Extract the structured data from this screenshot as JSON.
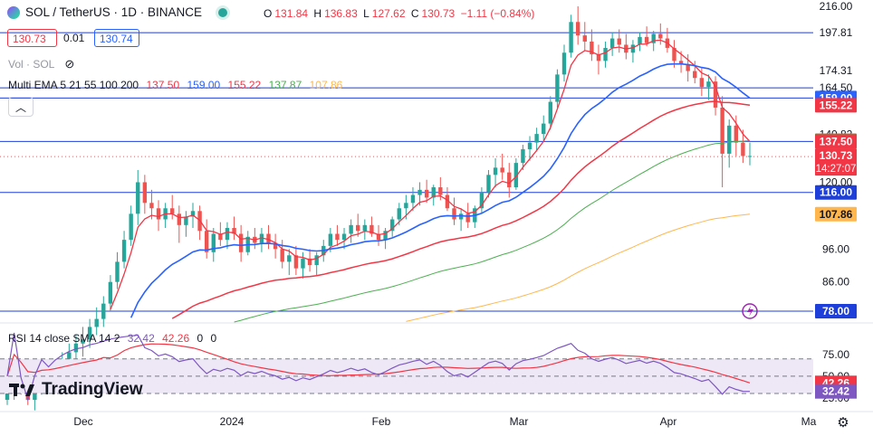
{
  "header": {
    "symbol": "SOL / TetherUS · 1D · BINANCE",
    "open_label": "O",
    "open": "131.84",
    "high_label": "H",
    "high": "136.83",
    "low_label": "L",
    "low": "127.62",
    "close_label": "C",
    "close": "130.73",
    "change": "−1.11 (−0.84%)",
    "bid": "130.73",
    "spread": "0.01",
    "ask": "130.74"
  },
  "indicators": {
    "volume_label": "Vol · SOL",
    "ema_label": "Multi EMA 5 21 55 100 200",
    "ema_values": [
      "137.50",
      "159.00",
      "155.22",
      "137.87",
      "107.86"
    ],
    "rsi_label": "RSI 14 close SMA 14 2",
    "rsi_values": [
      "32.42",
      "42.26",
      "0",
      "0"
    ]
  },
  "brand": "TradingView",
  "colors": {
    "up": "#26a69a",
    "down": "#ef5350",
    "ema5": "#f23645",
    "ema21": "#2962ff",
    "ema55": "#f23645",
    "ema100": "#4caf50",
    "ema200": "#ffb74d",
    "hline": "#1e3fd9",
    "rsi": "#7e57c2",
    "rsi_sma": "#f23645",
    "rsi_band": "#ede7f6"
  },
  "chart_data": {
    "type": "candlestick",
    "title": "SOL / TetherUS · 1D · BINANCE",
    "x_ticks": [
      "Dec",
      "2024",
      "Feb",
      "Mar",
      "Apr",
      "Ma"
    ],
    "y_ticks": [
      "216.00",
      "197.81",
      "174.31",
      "164.50",
      "140.82",
      "120.00",
      "96.00",
      "86.00"
    ],
    "price_scale": "log",
    "horizontal_levels": [
      {
        "value": 197.81,
        "label": "197.81",
        "style": "line"
      },
      {
        "value": 164.5,
        "label": "164.50",
        "style": "line"
      },
      {
        "value": 159.0,
        "label": "159.00",
        "style": "line"
      },
      {
        "value": 137.5,
        "label": "137.50",
        "style": "line"
      },
      {
        "value": 116.0,
        "label": "116.00",
        "style": "line"
      },
      {
        "value": 78.0,
        "label": "78.00",
        "style": "line"
      }
    ],
    "axis_badges": [
      {
        "value": 216.0,
        "label": "216.00",
        "kind": "plain"
      },
      {
        "value": 197.81,
        "label": "197.81",
        "kind": "plain"
      },
      {
        "value": 174.31,
        "label": "174.31",
        "kind": "plain"
      },
      {
        "value": 164.5,
        "label": "164.50",
        "kind": "plain"
      },
      {
        "value": 159.0,
        "label": "159.00",
        "kind": "ema21"
      },
      {
        "value": 155.22,
        "label": "155.22",
        "kind": "ema55"
      },
      {
        "value": 140.82,
        "label": "140.82",
        "kind": "plain"
      },
      {
        "value": 137.87,
        "label": "137.87",
        "kind": "ema100"
      },
      {
        "value": 137.5,
        "label": "137.50",
        "kind": "ema5"
      },
      {
        "value": 130.73,
        "label": "130.73",
        "kind": "last"
      },
      {
        "value": 116.0,
        "label": "116.00",
        "kind": "dark"
      },
      {
        "value": 107.86,
        "label": "107.86",
        "kind": "ema200"
      },
      {
        "value": 78.0,
        "label": "78.00",
        "kind": "dark"
      }
    ],
    "countdown": "14:27:07",
    "last_price": 130.73,
    "ohlc": [
      [
        58,
        62,
        57,
        60
      ],
      [
        60,
        63,
        58,
        61
      ],
      [
        61,
        64,
        59,
        60
      ],
      [
        60,
        62,
        57,
        58
      ],
      [
        58,
        61,
        56,
        60
      ],
      [
        60,
        64,
        59,
        63
      ],
      [
        63,
        66,
        61,
        62
      ],
      [
        62,
        65,
        60,
        64
      ],
      [
        64,
        68,
        62,
        66
      ],
      [
        66,
        70,
        64,
        68
      ],
      [
        68,
        72,
        66,
        70
      ],
      [
        70,
        74,
        67,
        71
      ],
      [
        71,
        76,
        69,
        74
      ],
      [
        74,
        79,
        72,
        76
      ],
      [
        76,
        82,
        74,
        80
      ],
      [
        80,
        88,
        78,
        86
      ],
      [
        86,
        95,
        84,
        92
      ],
      [
        92,
        102,
        90,
        99
      ],
      [
        99,
        111,
        97,
        108
      ],
      [
        108,
        125,
        104,
        120
      ],
      [
        120,
        123,
        108,
        112
      ],
      [
        112,
        117,
        106,
        110
      ],
      [
        110,
        113,
        102,
        106
      ],
      [
        106,
        112,
        103,
        110
      ],
      [
        110,
        115,
        106,
        108
      ],
      [
        108,
        111,
        98,
        104
      ],
      [
        104,
        109,
        100,
        107
      ],
      [
        107,
        112,
        103,
        109
      ],
      [
        109,
        111,
        99,
        102
      ],
      [
        102,
        106,
        93,
        95
      ],
      [
        95,
        103,
        92,
        101
      ],
      [
        101,
        105,
        97,
        99
      ],
      [
        99,
        105,
        96,
        103
      ],
      [
        103,
        107,
        99,
        101
      ],
      [
        101,
        104,
        92,
        95
      ],
      [
        95,
        102,
        94,
        100
      ],
      [
        100,
        103,
        96,
        98
      ],
      [
        98,
        103,
        95,
        101
      ],
      [
        101,
        104,
        96,
        98
      ],
      [
        98,
        101,
        93,
        96
      ],
      [
        96,
        99,
        90,
        92
      ],
      [
        92,
        96,
        88,
        94
      ],
      [
        94,
        97,
        88,
        90
      ],
      [
        90,
        95,
        87,
        93
      ],
      [
        93,
        96,
        89,
        91
      ],
      [
        91,
        95,
        88,
        94
      ],
      [
        94,
        99,
        92,
        97
      ],
      [
        97,
        103,
        95,
        101
      ],
      [
        101,
        104,
        97,
        99
      ],
      [
        99,
        103,
        96,
        101
      ],
      [
        101,
        106,
        98,
        104
      ],
      [
        104,
        108,
        100,
        102
      ],
      [
        102,
        106,
        99,
        104
      ],
      [
        104,
        107,
        100,
        101
      ],
      [
        101,
        104,
        97,
        99
      ],
      [
        99,
        103,
        96,
        102
      ],
      [
        102,
        107,
        100,
        106
      ],
      [
        106,
        112,
        104,
        110
      ],
      [
        110,
        115,
        106,
        112
      ],
      [
        112,
        118,
        109,
        115
      ],
      [
        115,
        120,
        111,
        117
      ],
      [
        117,
        121,
        112,
        114
      ],
      [
        114,
        119,
        111,
        118
      ],
      [
        118,
        122,
        113,
        115
      ],
      [
        115,
        118,
        109,
        110
      ],
      [
        110,
        114,
        104,
        106
      ],
      [
        106,
        110,
        102,
        108
      ],
      [
        108,
        112,
        103,
        105
      ],
      [
        105,
        111,
        103,
        110
      ],
      [
        110,
        118,
        108,
        116
      ],
      [
        116,
        125,
        114,
        123
      ],
      [
        123,
        130,
        118,
        126
      ],
      [
        126,
        132,
        121,
        124
      ],
      [
        124,
        128,
        114,
        118
      ],
      [
        118,
        130,
        117,
        128
      ],
      [
        128,
        136,
        125,
        134
      ],
      [
        134,
        140,
        129,
        137
      ],
      [
        137,
        144,
        133,
        141
      ],
      [
        141,
        150,
        138,
        146
      ],
      [
        146,
        160,
        143,
        157
      ],
      [
        157,
        175,
        154,
        172
      ],
      [
        172,
        190,
        168,
        185
      ],
      [
        185,
        210,
        182,
        205
      ],
      [
        205,
        216,
        190,
        196
      ],
      [
        196,
        205,
        186,
        192
      ],
      [
        192,
        200,
        180,
        184
      ],
      [
        184,
        190,
        172,
        180
      ],
      [
        180,
        192,
        176,
        188
      ],
      [
        188,
        198,
        183,
        194
      ],
      [
        194,
        200,
        185,
        190
      ],
      [
        190,
        197,
        181,
        185
      ],
      [
        185,
        193,
        179,
        190
      ],
      [
        190,
        198,
        186,
        195
      ],
      [
        195,
        202,
        189,
        191
      ],
      [
        191,
        199,
        186,
        197
      ],
      [
        197,
        204,
        190,
        194
      ],
      [
        194,
        201,
        185,
        188
      ],
      [
        188,
        193,
        176,
        180
      ],
      [
        180,
        186,
        173,
        178
      ],
      [
        178,
        184,
        168,
        174
      ],
      [
        174,
        180,
        167,
        170
      ],
      [
        170,
        176,
        160,
        165
      ],
      [
        165,
        172,
        158,
        168
      ],
      [
        168,
        171,
        150,
        154
      ],
      [
        154,
        160,
        118,
        132
      ],
      [
        132,
        148,
        126,
        145
      ],
      [
        145,
        150,
        131,
        137
      ],
      [
        137,
        143,
        128,
        131
      ],
      [
        131,
        137,
        127,
        131
      ]
    ],
    "ema": [
      {
        "name": "EMA 5",
        "value": 137.5
      },
      {
        "name": "EMA 21",
        "value": 159.0
      },
      {
        "name": "EMA 55",
        "value": 155.22
      },
      {
        "name": "EMA 100",
        "value": 137.87
      },
      {
        "name": "EMA 200",
        "value": 107.86
      }
    ],
    "rsi": {
      "y_ticks": [
        "75.00",
        "50.00",
        "25.00"
      ],
      "rsi_value": 32.42,
      "sma_value": 42.26,
      "upper_band": 70,
      "mid": 50,
      "lower_band": 30
    }
  }
}
